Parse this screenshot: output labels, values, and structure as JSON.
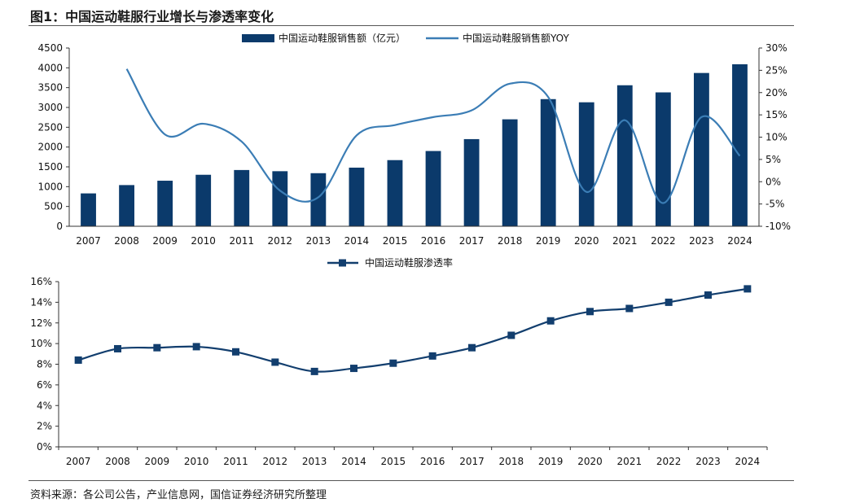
{
  "title": "图1：中国运动鞋服行业增长与渗透率变化",
  "source": "资料来源：各公司公告，产业信息网，国信证券经济研究所整理",
  "colors": {
    "bar": "#0b3a6b",
    "yoy_line": "#3b7db5",
    "penetration": "#123e6e"
  },
  "chart_data": [
    {
      "type": "bar",
      "title": "",
      "categories": [
        "2007",
        "2008",
        "2009",
        "2010",
        "2011",
        "2012",
        "2013",
        "2014",
        "2015",
        "2016",
        "2017",
        "2018",
        "2019",
        "2020",
        "2021",
        "2022",
        "2023",
        "2024"
      ],
      "series": [
        {
          "name": "中国运动鞋服销售额（亿元）",
          "axis": "left",
          "values": [
            830,
            1040,
            1150,
            1300,
            1420,
            1390,
            1340,
            1480,
            1670,
            1900,
            2200,
            2700,
            3210,
            3130,
            3560,
            3380,
            3870,
            4090
          ]
        },
        {
          "name": "中国运动鞋服销售额YOY",
          "axis": "right",
          "type": "line",
          "unit": "%",
          "values": [
            null,
            25.3,
            10.6,
            13.0,
            9.0,
            -2.0,
            -3.5,
            10.4,
            12.7,
            14.5,
            16.0,
            22.0,
            19.0,
            -2.3,
            13.8,
            -4.8,
            14.5,
            5.8
          ]
        }
      ],
      "y_left": {
        "ylim": [
          0,
          4500
        ],
        "ticks": [
          "0",
          "500",
          "1000",
          "1500",
          "2000",
          "2500",
          "3000",
          "3500",
          "4000",
          "4500"
        ]
      },
      "y_right": {
        "ylim": [
          -10,
          30
        ],
        "ticks": [
          "-10%",
          "-5%",
          "0%",
          "5%",
          "10%",
          "15%",
          "20%",
          "25%",
          "30%"
        ]
      },
      "legend": "top-center"
    },
    {
      "type": "line",
      "title": "",
      "categories": [
        "2007",
        "2008",
        "2009",
        "2010",
        "2011",
        "2012",
        "2013",
        "2014",
        "2015",
        "2016",
        "2017",
        "2018",
        "2019",
        "2020",
        "2021",
        "2022",
        "2023",
        "2024"
      ],
      "series": [
        {
          "name": "中国运动鞋服渗透率",
          "unit": "%",
          "values": [
            8.4,
            9.5,
            9.6,
            9.7,
            9.2,
            8.2,
            7.3,
            7.6,
            8.1,
            8.8,
            9.6,
            10.8,
            12.2,
            13.1,
            13.4,
            14.0,
            14.7,
            15.3
          ]
        }
      ],
      "ylim": [
        0,
        16
      ],
      "yticks": [
        "0%",
        "2%",
        "4%",
        "6%",
        "8%",
        "10%",
        "12%",
        "14%",
        "16%"
      ],
      "legend": "top-center"
    }
  ]
}
